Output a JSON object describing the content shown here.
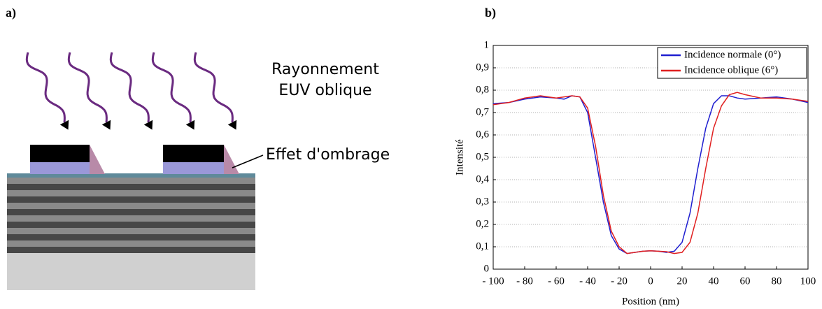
{
  "diagram": {
    "panel_a_label": "a)",
    "radiation_line1": "Rayonnement",
    "radiation_line2": "EUV oblique",
    "shadow_label": "Effet d'ombrage",
    "panel_b_label": "b)"
  },
  "chart_data": {
    "type": "line",
    "x_label": "Position (nm)",
    "y_label": "Intensité",
    "xlim": [
      -100,
      100
    ],
    "ylim": [
      0,
      1
    ],
    "xticks": [
      {
        "value": -100,
        "label": "- 100"
      },
      {
        "value": -80,
        "label": "- 80"
      },
      {
        "value": -60,
        "label": "- 60"
      },
      {
        "value": -40,
        "label": "- 40"
      },
      {
        "value": -20,
        "label": "- 20"
      },
      0,
      20,
      40,
      60,
      80,
      100
    ],
    "yticks": [
      0,
      {
        "value": 0.1,
        "label": "0,1"
      },
      {
        "value": 0.2,
        "label": "0,2"
      },
      {
        "value": 0.3,
        "label": "0,3"
      },
      {
        "value": 0.4,
        "label": "0,4"
      },
      {
        "value": 0.5,
        "label": "0,5"
      },
      {
        "value": 0.6,
        "label": "0,6"
      },
      {
        "value": 0.7,
        "label": "0,7"
      },
      {
        "value": 0.8,
        "label": "0,8"
      },
      {
        "value": 0.9,
        "label": "0,9"
      },
      1
    ],
    "grid": true,
    "legend": "upper right",
    "series": [
      {
        "name": "Incidence normale (0°)",
        "color": "#1f1fd0",
        "x": [
          -100,
          -90,
          -80,
          -70,
          -60,
          -55,
          -50,
          -45,
          -40,
          -35,
          -30,
          -25,
          -20,
          -15,
          -10,
          -5,
          0,
          5,
          10,
          15,
          20,
          25,
          30,
          35,
          40,
          45,
          50,
          55,
          60,
          70,
          80,
          90,
          100
        ],
        "values": [
          0.74,
          0.745,
          0.76,
          0.77,
          0.765,
          0.76,
          0.775,
          0.77,
          0.7,
          0.5,
          0.3,
          0.15,
          0.09,
          0.07,
          0.075,
          0.08,
          0.082,
          0.08,
          0.075,
          0.08,
          0.12,
          0.25,
          0.45,
          0.63,
          0.74,
          0.775,
          0.775,
          0.765,
          0.76,
          0.765,
          0.77,
          0.76,
          0.745
        ]
      },
      {
        "name": "Incidence oblique (6°)",
        "color": "#e02020",
        "x": [
          -100,
          -90,
          -80,
          -70,
          -60,
          -50,
          -45,
          -40,
          -35,
          -30,
          -25,
          -20,
          -15,
          -10,
          -5,
          0,
          5,
          10,
          15,
          20,
          25,
          30,
          35,
          40,
          45,
          50,
          55,
          60,
          70,
          80,
          90,
          100
        ],
        "values": [
          0.735,
          0.745,
          0.765,
          0.775,
          0.765,
          0.775,
          0.77,
          0.72,
          0.55,
          0.33,
          0.17,
          0.1,
          0.07,
          0.075,
          0.08,
          0.082,
          0.08,
          0.078,
          0.07,
          0.075,
          0.12,
          0.25,
          0.45,
          0.63,
          0.73,
          0.78,
          0.79,
          0.78,
          0.765,
          0.765,
          0.76,
          0.75
        ]
      }
    ]
  }
}
